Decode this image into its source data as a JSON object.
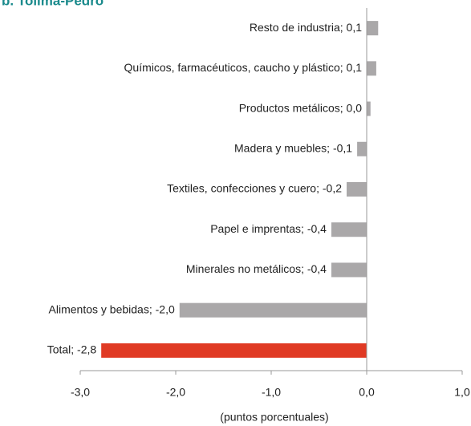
{
  "chart_data": {
    "type": "bar",
    "orientation": "horizontal",
    "title": "b. Tolima-Pedro",
    "categories": [
      "Resto de industria; 0,1",
      "Químicos, farmacéuticos, caucho y plástico; 0,1",
      "Productos metálicos; 0,0",
      "Madera y muebles; -0,1",
      "Textiles, confecciones y cuero; -0,2",
      "Papel e imprentas; -0,4",
      "Minerales no metálicos; -0,4",
      "Alimentos y bebidas; -2,0",
      "Total; -2,8"
    ],
    "values": [
      0.12,
      0.1,
      0.04,
      -0.1,
      -0.21,
      -0.37,
      -0.37,
      -1.96,
      -2.78
    ],
    "colors": [
      "#aaa8a9",
      "#aaa8a9",
      "#aaa8a9",
      "#aaa8a9",
      "#aaa8a9",
      "#aaa8a9",
      "#aaa8a9",
      "#aaa8a9",
      "#e03a24"
    ],
    "xlim": [
      -3,
      1
    ],
    "xticks": [
      {
        "value": -3,
        "label": "-3,0"
      },
      {
        "value": -2,
        "label": "-2,0"
      },
      {
        "value": -1,
        "label": "-1,0"
      },
      {
        "value": 0,
        "label": "0,0"
      },
      {
        "value": 1,
        "label": "1,0"
      }
    ],
    "xlabel": "(puntos porcentuales)",
    "grid": false
  }
}
